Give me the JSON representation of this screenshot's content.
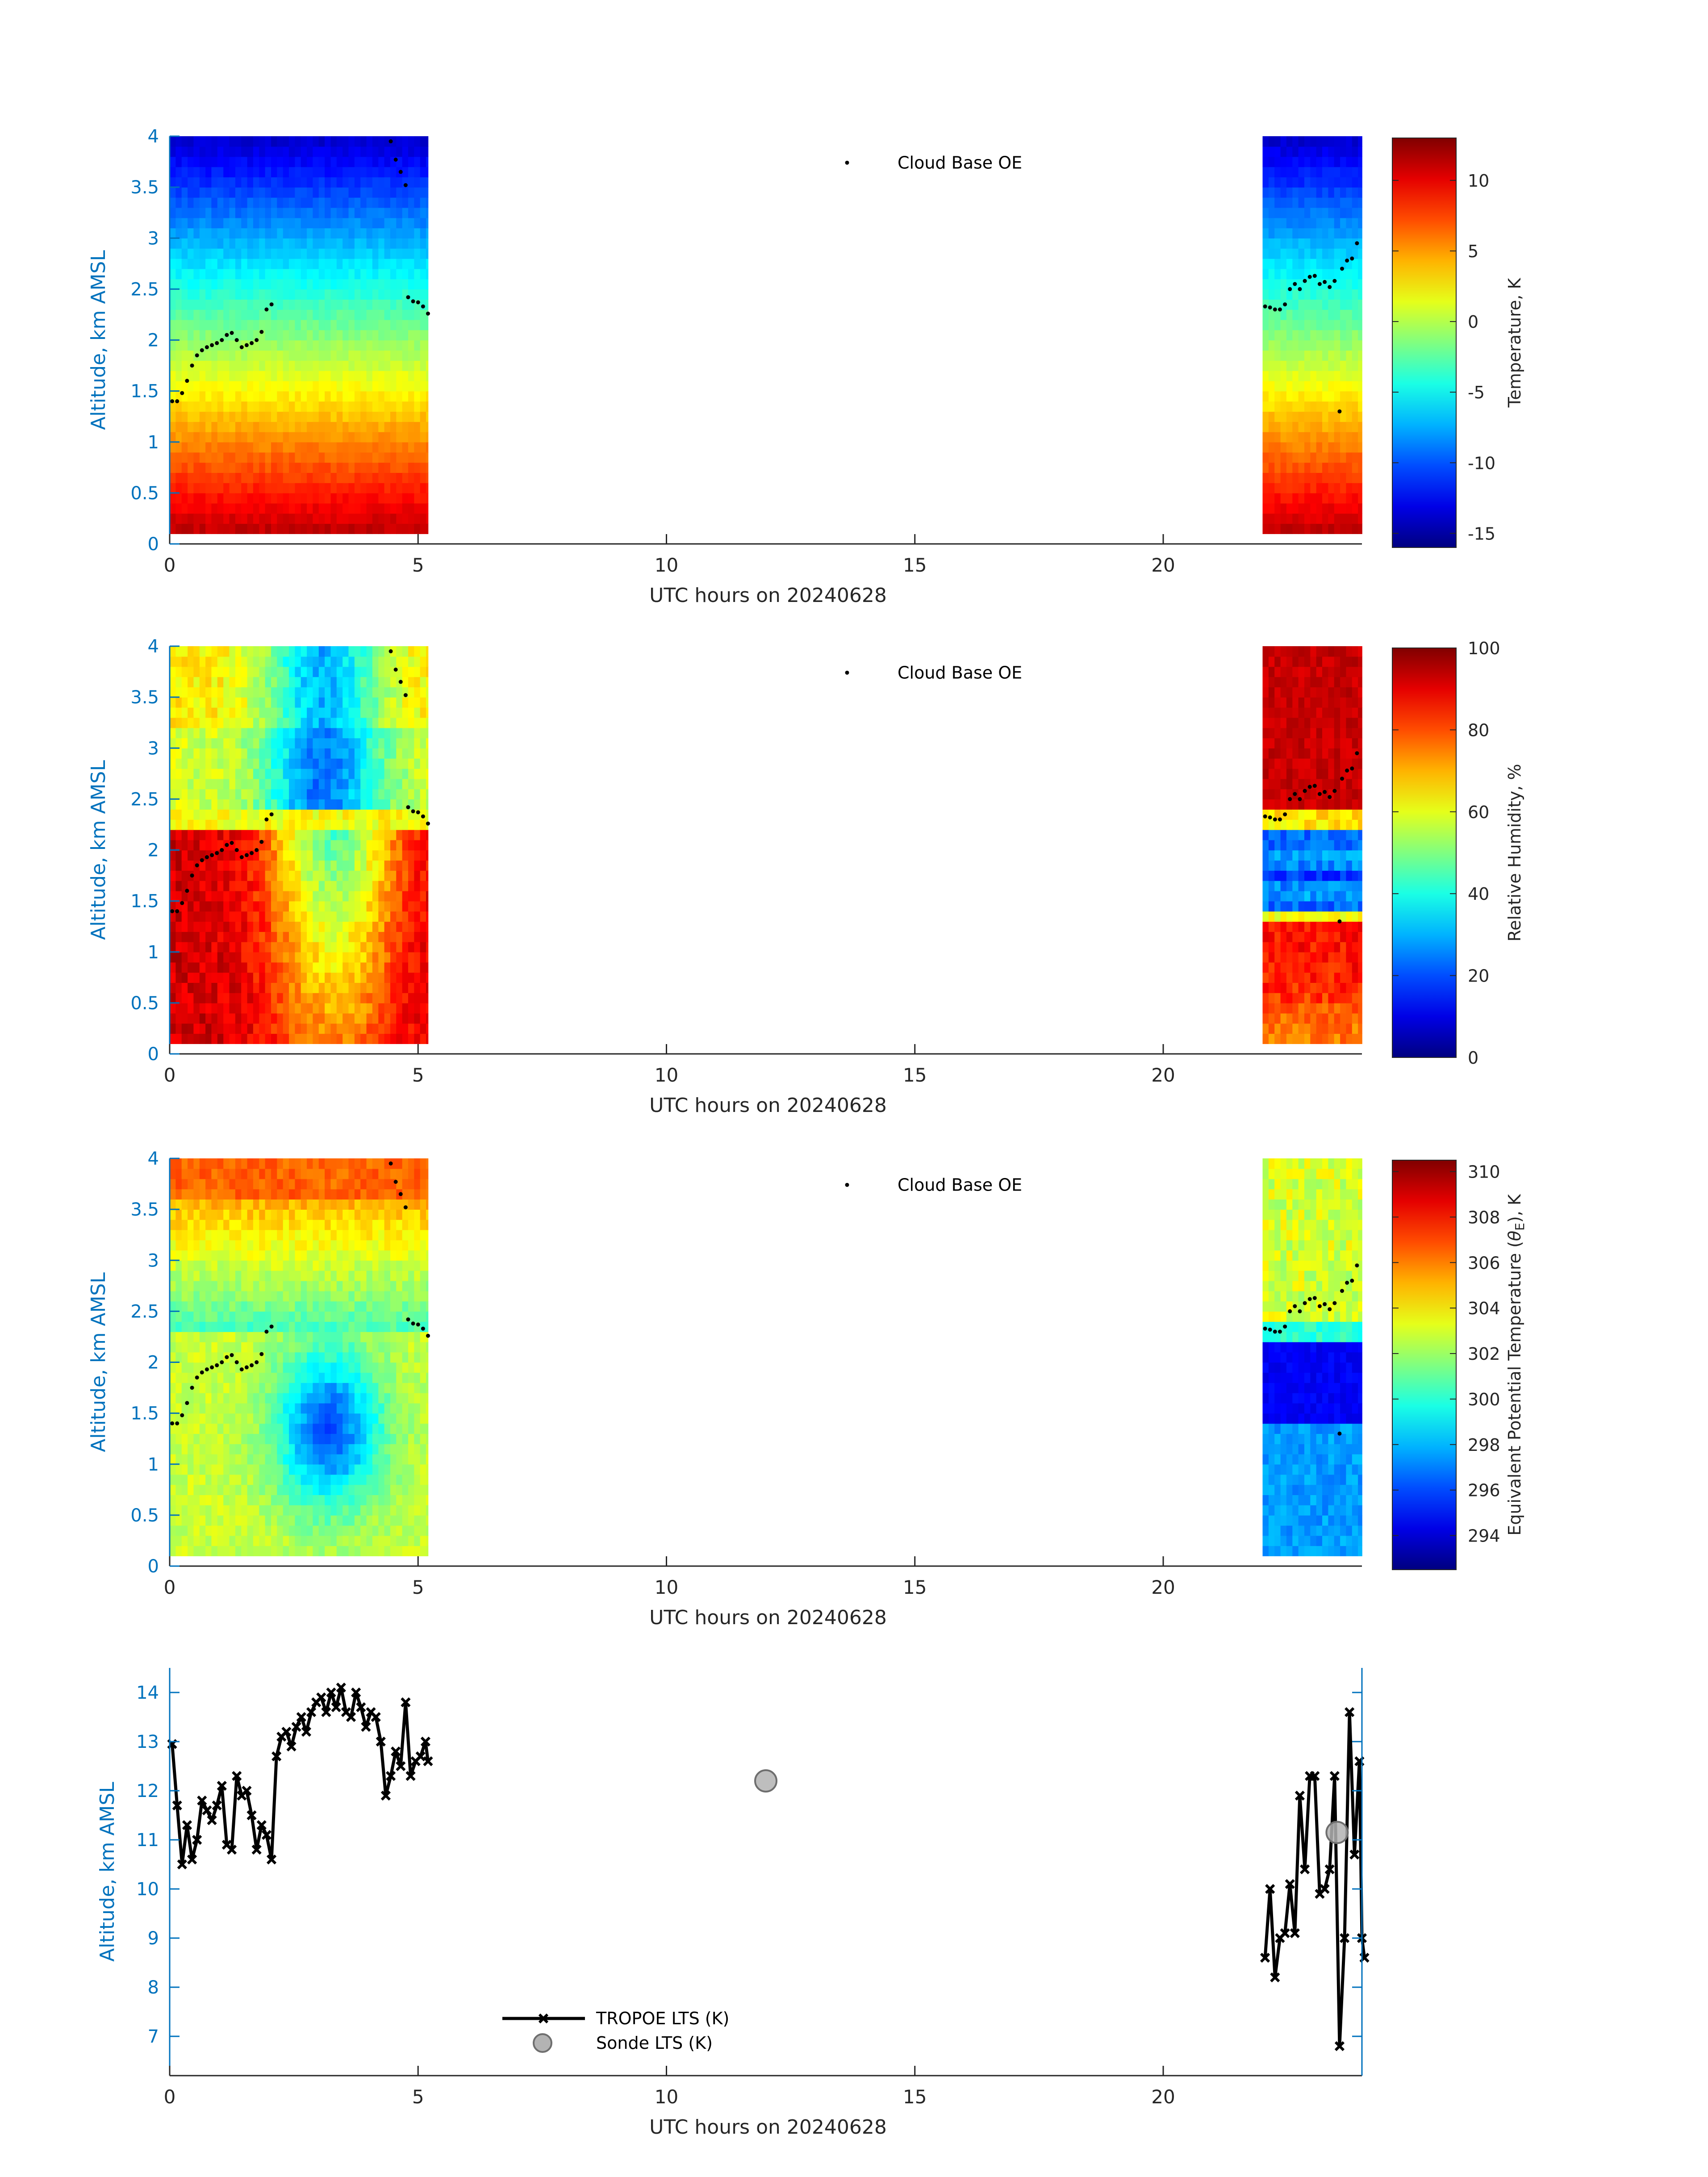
{
  "figure": {
    "date_label": "UTC hours on 20240628"
  },
  "chart_data": [
    {
      "type": "heatmap",
      "name": "temperature",
      "xlabel": "UTC hours on 20240628",
      "ylabel": "Altitude, km AMSL",
      "xlim": [
        0,
        24
      ],
      "ylim": [
        0,
        4
      ],
      "xticks": [
        "0",
        "5",
        "10",
        "15",
        "20"
      ],
      "yticks": [
        "0",
        "0.5",
        "1",
        "1.5",
        "2",
        "2.5",
        "3",
        "3.5",
        "4"
      ],
      "legend": [
        "Cloud Base OE"
      ],
      "colorbar": {
        "title": "Temperature, K",
        "range": [
          -16,
          13
        ],
        "ticks": [
          "-15",
          "-10",
          "-5",
          "0",
          "5",
          "10"
        ],
        "tick_values": [
          -15,
          -10,
          -5,
          0,
          5,
          10
        ]
      },
      "data_segments": [
        [
          0,
          5.2
        ],
        [
          22,
          24
        ]
      ],
      "field_description": "approx. 12 at surface decreasing to about -14 at 4 km",
      "cloud_base": [
        [
          0.05,
          1.4
        ],
        [
          0.15,
          1.4
        ],
        [
          0.25,
          1.48
        ],
        [
          0.35,
          1.6
        ],
        [
          0.45,
          1.75
        ],
        [
          0.55,
          1.85
        ],
        [
          0.65,
          1.9
        ],
        [
          0.75,
          1.93
        ],
        [
          0.85,
          1.95
        ],
        [
          0.95,
          1.97
        ],
        [
          1.05,
          2.0
        ],
        [
          1.15,
          2.05
        ],
        [
          1.25,
          2.07
        ],
        [
          1.35,
          2.0
        ],
        [
          1.45,
          1.93
        ],
        [
          1.55,
          1.95
        ],
        [
          1.65,
          1.97
        ],
        [
          1.75,
          2.0
        ],
        [
          1.85,
          2.08
        ],
        [
          1.95,
          2.3
        ],
        [
          2.05,
          2.35
        ],
        [
          4.45,
          3.95
        ],
        [
          4.55,
          3.77
        ],
        [
          4.65,
          3.65
        ],
        [
          4.75,
          3.52
        ],
        [
          4.8,
          2.42
        ],
        [
          4.9,
          2.38
        ],
        [
          5.0,
          2.37
        ],
        [
          5.1,
          2.33
        ],
        [
          5.2,
          2.26
        ],
        [
          22.05,
          2.33
        ],
        [
          22.15,
          2.32
        ],
        [
          22.25,
          2.3
        ],
        [
          22.35,
          2.3
        ],
        [
          22.45,
          2.35
        ],
        [
          22.55,
          2.5
        ],
        [
          22.65,
          2.55
        ],
        [
          22.75,
          2.5
        ],
        [
          22.85,
          2.58
        ],
        [
          22.95,
          2.62
        ],
        [
          23.05,
          2.63
        ],
        [
          23.15,
          2.55
        ],
        [
          23.25,
          2.57
        ],
        [
          23.35,
          2.52
        ],
        [
          23.45,
          2.58
        ],
        [
          23.55,
          1.3
        ],
        [
          23.6,
          2.7
        ],
        [
          23.7,
          2.78
        ],
        [
          23.8,
          2.8
        ],
        [
          23.9,
          2.95
        ]
      ]
    },
    {
      "type": "heatmap",
      "name": "relative-humidity",
      "xlabel": "UTC hours on 20240628",
      "ylabel": "Altitude, km AMSL",
      "xlim": [
        0,
        24
      ],
      "ylim": [
        0,
        4
      ],
      "xticks": [
        "0",
        "5",
        "10",
        "15",
        "20"
      ],
      "yticks": [
        "0",
        "0.5",
        "1",
        "1.5",
        "2",
        "2.5",
        "3",
        "3.5",
        "4"
      ],
      "legend": [
        "Cloud Base OE"
      ],
      "colorbar": {
        "title": "Relative Humidity, %",
        "range": [
          0,
          100
        ],
        "ticks": [
          "0",
          "20",
          "40",
          "60",
          "80",
          "100"
        ],
        "tick_values": [
          0,
          20,
          40,
          60,
          80,
          100
        ]
      },
      "data_segments": [
        [
          0,
          5.2
        ],
        [
          22,
          24
        ]
      ],
      "field_description": "high (80-95%) below 2.2 km early, dry minimum near 3 km around 3 UTC, saturated aloft after 22 UTC",
      "cloud_base": "same as temperature"
    },
    {
      "type": "heatmap",
      "name": "equivalent-potential-temperature",
      "xlabel": "UTC hours on 20240628",
      "ylabel": "Altitude, km AMSL",
      "xlim": [
        0,
        24
      ],
      "ylim": [
        0,
        4
      ],
      "xticks": [
        "0",
        "5",
        "10",
        "15",
        "20"
      ],
      "yticks": [
        "0",
        "0.5",
        "1",
        "1.5",
        "2",
        "2.5",
        "3",
        "3.5",
        "4"
      ],
      "legend": [
        "Cloud Base OE"
      ],
      "colorbar": {
        "title_prefix": "Equivalent Potential Temperature (",
        "title_symbol": "θ",
        "title_subscript": "E",
        "title_suffix": "), K",
        "range": [
          292.5,
          310.5
        ],
        "ticks": [
          "294",
          "296",
          "298",
          "300",
          "302",
          "304",
          "306",
          "308",
          "310"
        ],
        "tick_values": [
          294,
          296,
          298,
          300,
          302,
          304,
          306,
          308,
          310
        ]
      },
      "data_segments": [
        [
          0,
          5.2
        ],
        [
          22,
          24
        ]
      ],
      "field_description": "~303 near surface, minimum ~296 near 1.3 km at 3 UTC, ~307 at 4 km",
      "cloud_base": "same as temperature"
    },
    {
      "type": "line",
      "name": "lower-tropospheric-stability",
      "xlabel": "UTC hours on 20240628",
      "ylabel": "Altitude, km AMSL",
      "xlim": [
        0,
        24
      ],
      "ylim": [
        6.2,
        14.5
      ],
      "xticks": [
        "0",
        "5",
        "10",
        "15",
        "20"
      ],
      "yticks": [
        "7",
        "8",
        "9",
        "10",
        "11",
        "12",
        "13",
        "14"
      ],
      "legend": [
        "TROPOE LTS (K)",
        "Sonde LTS (K)"
      ],
      "series": [
        {
          "name": "TROPOE LTS (K)",
          "segments": [
            [
              [
                0.05,
                12.95
              ],
              [
                0.15,
                11.7
              ],
              [
                0.25,
                10.5
              ],
              [
                0.35,
                11.3
              ],
              [
                0.45,
                10.6
              ],
              [
                0.55,
                11.0
              ],
              [
                0.65,
                11.8
              ],
              [
                0.75,
                11.6
              ],
              [
                0.85,
                11.4
              ],
              [
                0.95,
                11.7
              ],
              [
                1.05,
                12.1
              ],
              [
                1.15,
                10.9
              ],
              [
                1.25,
                10.8
              ],
              [
                1.35,
                12.3
              ],
              [
                1.45,
                11.9
              ],
              [
                1.55,
                12.0
              ],
              [
                1.65,
                11.5
              ],
              [
                1.75,
                10.8
              ],
              [
                1.85,
                11.3
              ],
              [
                1.95,
                11.1
              ],
              [
                2.05,
                10.6
              ],
              [
                2.15,
                12.7
              ],
              [
                2.25,
                13.1
              ],
              [
                2.35,
                13.2
              ],
              [
                2.45,
                12.9
              ],
              [
                2.55,
                13.3
              ],
              [
                2.65,
                13.5
              ],
              [
                2.75,
                13.2
              ],
              [
                2.85,
                13.6
              ],
              [
                2.95,
                13.8
              ],
              [
                3.05,
                13.9
              ],
              [
                3.15,
                13.6
              ],
              [
                3.25,
                14.0
              ],
              [
                3.35,
                13.7
              ],
              [
                3.45,
                14.1
              ],
              [
                3.55,
                13.6
              ],
              [
                3.65,
                13.5
              ],
              [
                3.75,
                14.0
              ],
              [
                3.85,
                13.7
              ],
              [
                3.95,
                13.3
              ],
              [
                4.05,
                13.6
              ],
              [
                4.15,
                13.5
              ],
              [
                4.25,
                13.0
              ],
              [
                4.35,
                11.9
              ],
              [
                4.45,
                12.3
              ],
              [
                4.55,
                12.8
              ],
              [
                4.65,
                12.5
              ],
              [
                4.75,
                13.8
              ],
              [
                4.85,
                12.3
              ],
              [
                4.95,
                12.6
              ],
              [
                5.05,
                12.7
              ],
              [
                5.15,
                13.0
              ],
              [
                5.2,
                12.6
              ]
            ],
            [
              [
                22.05,
                8.6
              ],
              [
                22.15,
                10.0
              ],
              [
                22.25,
                8.2
              ],
              [
                22.35,
                9.0
              ],
              [
                22.45,
                9.1
              ],
              [
                22.55,
                10.1
              ],
              [
                22.65,
                9.1
              ],
              [
                22.75,
                11.9
              ],
              [
                22.85,
                10.4
              ],
              [
                22.95,
                12.3
              ],
              [
                23.05,
                12.3
              ],
              [
                23.15,
                9.9
              ],
              [
                23.25,
                10.0
              ],
              [
                23.35,
                10.4
              ],
              [
                23.45,
                12.3
              ],
              [
                23.55,
                6.8
              ],
              [
                23.65,
                9.0
              ],
              [
                23.75,
                13.6
              ],
              [
                23.85,
                10.7
              ],
              [
                23.95,
                12.6
              ],
              [
                24.0,
                9.0
              ],
              [
                24.05,
                8.6
              ]
            ]
          ]
        },
        {
          "name": "Sonde LTS (K)",
          "points": [
            [
              12.0,
              12.2
            ],
            [
              23.5,
              11.15
            ]
          ]
        }
      ]
    }
  ]
}
